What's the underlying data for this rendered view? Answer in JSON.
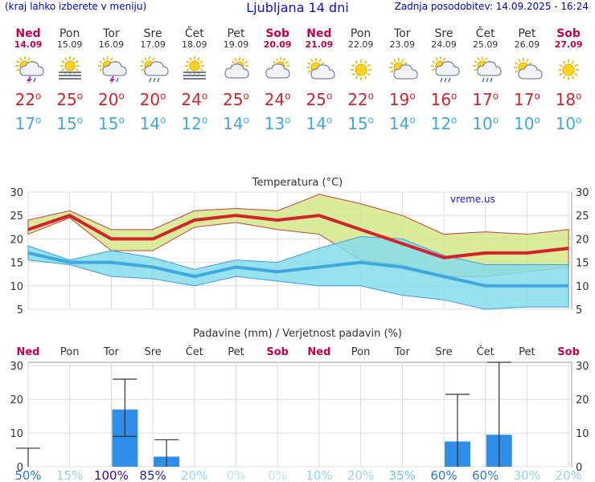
{
  "header": {
    "menu_hint": "(kraj lahko izberete v meniju)",
    "title": "Ljubljana 14 dni",
    "updated": "Zadnja posodobitev: 14.09.2025 - 16:24"
  },
  "days": [
    {
      "name": "Ned",
      "date": "14.09",
      "weekend": true,
      "icon": "sun-rain-storm-icon",
      "max": "22",
      "min": "17"
    },
    {
      "name": "Pon",
      "date": "15.09",
      "weekend": false,
      "icon": "sun-fog-icon",
      "max": "25",
      "min": "15"
    },
    {
      "name": "Tor",
      "date": "16.09",
      "weekend": false,
      "icon": "sun-rain-storm-icon",
      "max": "20",
      "min": "15"
    },
    {
      "name": "Sre",
      "date": "17.09",
      "weekend": false,
      "icon": "sun-cloud-rain-icon",
      "max": "20",
      "min": "14"
    },
    {
      "name": "Čet",
      "date": "18.09",
      "weekend": false,
      "icon": "sun-fog-icon",
      "max": "24",
      "min": "12"
    },
    {
      "name": "Pet",
      "date": "19.09",
      "weekend": false,
      "icon": "cloud-icon",
      "max": "25",
      "min": "14"
    },
    {
      "name": "Sob",
      "date": "20.09",
      "weekend": true,
      "icon": "cloud-icon",
      "max": "24",
      "min": "13"
    },
    {
      "name": "Ned",
      "date": "21.09",
      "weekend": true,
      "icon": "sun-cloud-icon",
      "max": "25",
      "min": "14"
    },
    {
      "name": "Pon",
      "date": "22.09",
      "weekend": false,
      "icon": "sun-icon",
      "max": "22",
      "min": "15"
    },
    {
      "name": "Tor",
      "date": "23.09",
      "weekend": false,
      "icon": "sun-cloud-icon",
      "max": "19",
      "min": "14"
    },
    {
      "name": "Sre",
      "date": "24.09",
      "weekend": false,
      "icon": "sun-cloud-rain-icon",
      "max": "16",
      "min": "12"
    },
    {
      "name": "Čet",
      "date": "25.09",
      "weekend": false,
      "icon": "sun-cloud-rain-icon",
      "max": "17",
      "min": "10"
    },
    {
      "name": "Pet",
      "date": "26.09",
      "weekend": false,
      "icon": "sun-cloud-icon",
      "max": "17",
      "min": "10"
    },
    {
      "name": "Sob",
      "date": "27.09",
      "weekend": true,
      "icon": "sun-icon",
      "max": "18",
      "min": "10"
    }
  ],
  "degree_symbol": "o",
  "colors": {
    "max": "#d4222a",
    "min": "#3fa8e0",
    "weekend": "#c00050",
    "bar": "#2f8fe8",
    "warm_band": "#d4e888",
    "cold_band": "#86dceb"
  },
  "chart_data": [
    {
      "type": "line",
      "title": "Temperatura (°C)",
      "watermark": "vreme.us",
      "ylim": [
        5,
        30
      ],
      "yticks": [
        5,
        10,
        15,
        20,
        25,
        30
      ],
      "x": [
        "14.09",
        "15.09",
        "16.09",
        "17.09",
        "18.09",
        "19.09",
        "20.09",
        "21.09",
        "22.09",
        "23.09",
        "24.09",
        "25.09",
        "26.09",
        "27.09"
      ],
      "series": [
        {
          "name": "max",
          "values": [
            22,
            25,
            20,
            20,
            24,
            25,
            24,
            25,
            22,
            19,
            16,
            17,
            17,
            18
          ]
        },
        {
          "name": "min",
          "values": [
            17,
            15,
            15,
            14,
            12,
            14,
            13,
            14,
            15,
            14,
            12,
            10,
            10,
            10
          ]
        }
      ],
      "max_band": {
        "upper": [
          24,
          26,
          22,
          22,
          26,
          26.5,
          26,
          29.5,
          27.5,
          25,
          21,
          21.5,
          21,
          22
        ],
        "lower": [
          21,
          24.5,
          17.5,
          17.5,
          22.5,
          23.5,
          22,
          21,
          15.5,
          14.5,
          12,
          12,
          13,
          14
        ]
      },
      "min_band": {
        "upper": [
          18.5,
          15.5,
          17.5,
          16,
          13.5,
          15.5,
          15,
          18,
          20.5,
          20,
          16.5,
          14.5,
          14.5,
          14.5
        ],
        "lower": [
          15.5,
          14.5,
          12,
          11.5,
          10,
          12,
          11,
          10,
          10,
          8,
          7,
          5,
          5.5,
          5.5
        ]
      },
      "grid": true
    },
    {
      "type": "bar",
      "title": "Padavine (mm) / Verjetnost padavin (%)",
      "categories": [
        "Ned",
        "Pon",
        "Tor",
        "Sre",
        "Čet",
        "Pet",
        "Sob",
        "Ned",
        "Pon",
        "Tor",
        "Sre",
        "Čet",
        "Pet",
        "Sob"
      ],
      "weekend": [
        true,
        false,
        false,
        false,
        false,
        false,
        true,
        true,
        false,
        false,
        false,
        false,
        false,
        true
      ],
      "values": [
        0,
        0,
        17,
        3,
        0,
        0,
        0,
        0,
        0,
        0,
        7.5,
        9.5,
        0,
        0
      ],
      "error_high": [
        5.5,
        0,
        26,
        8,
        0,
        0,
        0,
        0,
        0,
        0,
        21.5,
        31,
        0,
        0
      ],
      "error_low": [
        0,
        0,
        9,
        0,
        0,
        0,
        0,
        0,
        0,
        0,
        0,
        0,
        0,
        0
      ],
      "probability": [
        "50%",
        "15%",
        "100%",
        "85%",
        "20%",
        "0%",
        "0%",
        "10%",
        "20%",
        "35%",
        "60%",
        "60%",
        "30%",
        "20%"
      ],
      "probability_colors": [
        "#2b7ad6",
        "#90d4f0",
        "#4b00a0",
        "#1d2fa0",
        "#90d4f0",
        "#b6e4f6",
        "#b6e4f6",
        "#90d4f0",
        "#90d4f0",
        "#6cc0ea",
        "#2b7ad6",
        "#2b7ad6",
        "#90d4f0",
        "#90d4f0"
      ],
      "ylim": [
        0,
        31
      ],
      "yticks": [
        0,
        10,
        20,
        30
      ],
      "grid": true
    }
  ]
}
